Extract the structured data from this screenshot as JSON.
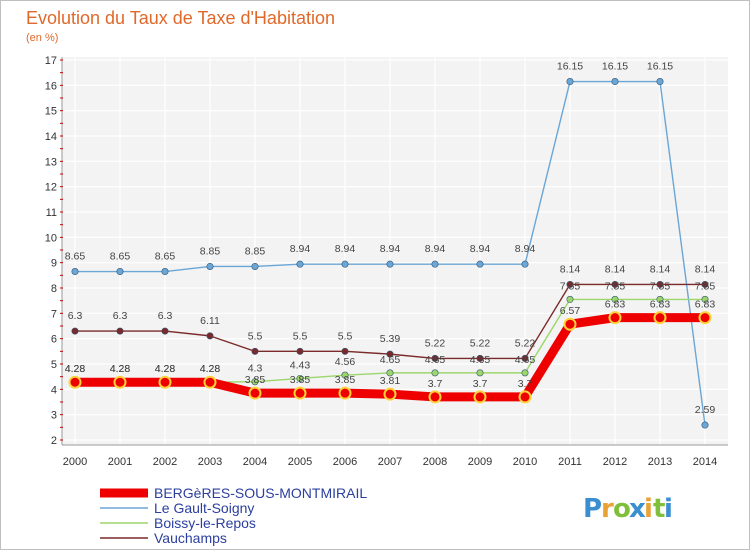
{
  "chart_data": {
    "type": "line",
    "title": "Evolution du Taux de Taxe d'Habitation",
    "subtitle": "(en %)",
    "xlabel": "",
    "ylabel": "",
    "x": [
      "2000",
      "2001",
      "2002",
      "2003",
      "2004",
      "2005",
      "2006",
      "2007",
      "2008",
      "2009",
      "2010",
      "2011",
      "2012",
      "2013",
      "2014"
    ],
    "ylim": [
      2,
      17
    ],
    "yticks": [
      2,
      3,
      4,
      5,
      6,
      7,
      8,
      9,
      10,
      11,
      12,
      13,
      14,
      15,
      16,
      17
    ],
    "grid": true,
    "legend_position": "bottom-left",
    "series": [
      {
        "name": "BERGèRES-SOUS-MONTMIRAIL",
        "color": "#ee0000",
        "values": [
          4.28,
          4.28,
          4.28,
          4.28,
          3.85,
          3.85,
          3.85,
          3.81,
          3.7,
          3.7,
          3.7,
          6.57,
          6.83,
          6.83,
          6.83
        ],
        "labels": [
          "4.28",
          "4.28",
          "4.28",
          "4.28",
          "3.85",
          "3.85",
          "3.85",
          "3.81",
          "3.7",
          "3.7",
          "3.7",
          "6.57",
          "6.83",
          "6.83",
          "6.83"
        ]
      },
      {
        "name": "Le Gault-Soigny",
        "color": "#6aa6d6",
        "values": [
          8.65,
          8.65,
          8.65,
          8.85,
          8.85,
          8.94,
          8.94,
          8.94,
          8.94,
          8.94,
          8.94,
          16.15,
          16.15,
          16.15,
          2.59
        ],
        "labels": [
          "8.65",
          "8.65",
          "8.65",
          "8.85",
          "8.85",
          "8.94",
          "8.94",
          "8.94",
          "8.94",
          "8.94",
          "8.94",
          "16.15",
          "16.15",
          "16.15",
          "2.59"
        ]
      },
      {
        "name": "Boissy-le-Repos",
        "color": "#9dd66b",
        "values": [
          4.28,
          4.28,
          4.28,
          4.28,
          4.3,
          4.43,
          4.56,
          4.65,
          4.65,
          4.65,
          4.65,
          7.55,
          7.55,
          7.55,
          7.55
        ],
        "labels": [
          "4.28",
          "4.28",
          "4.28",
          "4.28",
          "4.3",
          "4.43",
          "4.56",
          "4.65",
          "4.65",
          "4.65",
          "4.65",
          "7.55",
          "7.55",
          "7.55",
          "7.55"
        ]
      },
      {
        "name": "Vauchamps",
        "color": "#7b2a2a",
        "values": [
          6.3,
          6.3,
          6.3,
          6.11,
          5.5,
          5.5,
          5.5,
          5.39,
          5.22,
          5.22,
          5.22,
          8.14,
          8.14,
          8.14,
          8.14
        ],
        "labels": [
          "6.3",
          "6.3",
          "6.3",
          "6.11",
          "5.5",
          "5.5",
          "5.5",
          "5.39",
          "5.22",
          "5.22",
          "5.22",
          "8.14",
          "8.14",
          "8.14",
          "8.14"
        ]
      }
    ]
  },
  "brand": {
    "letters": [
      "P",
      "r",
      "o",
      "x",
      "i",
      "t",
      "i"
    ],
    "colors": [
      "#3a8fd0",
      "#e9a233",
      "#7fbf3a",
      "#3a8fd0",
      "#e9a233",
      "#7fbf3a",
      "#3a8fd0"
    ]
  }
}
